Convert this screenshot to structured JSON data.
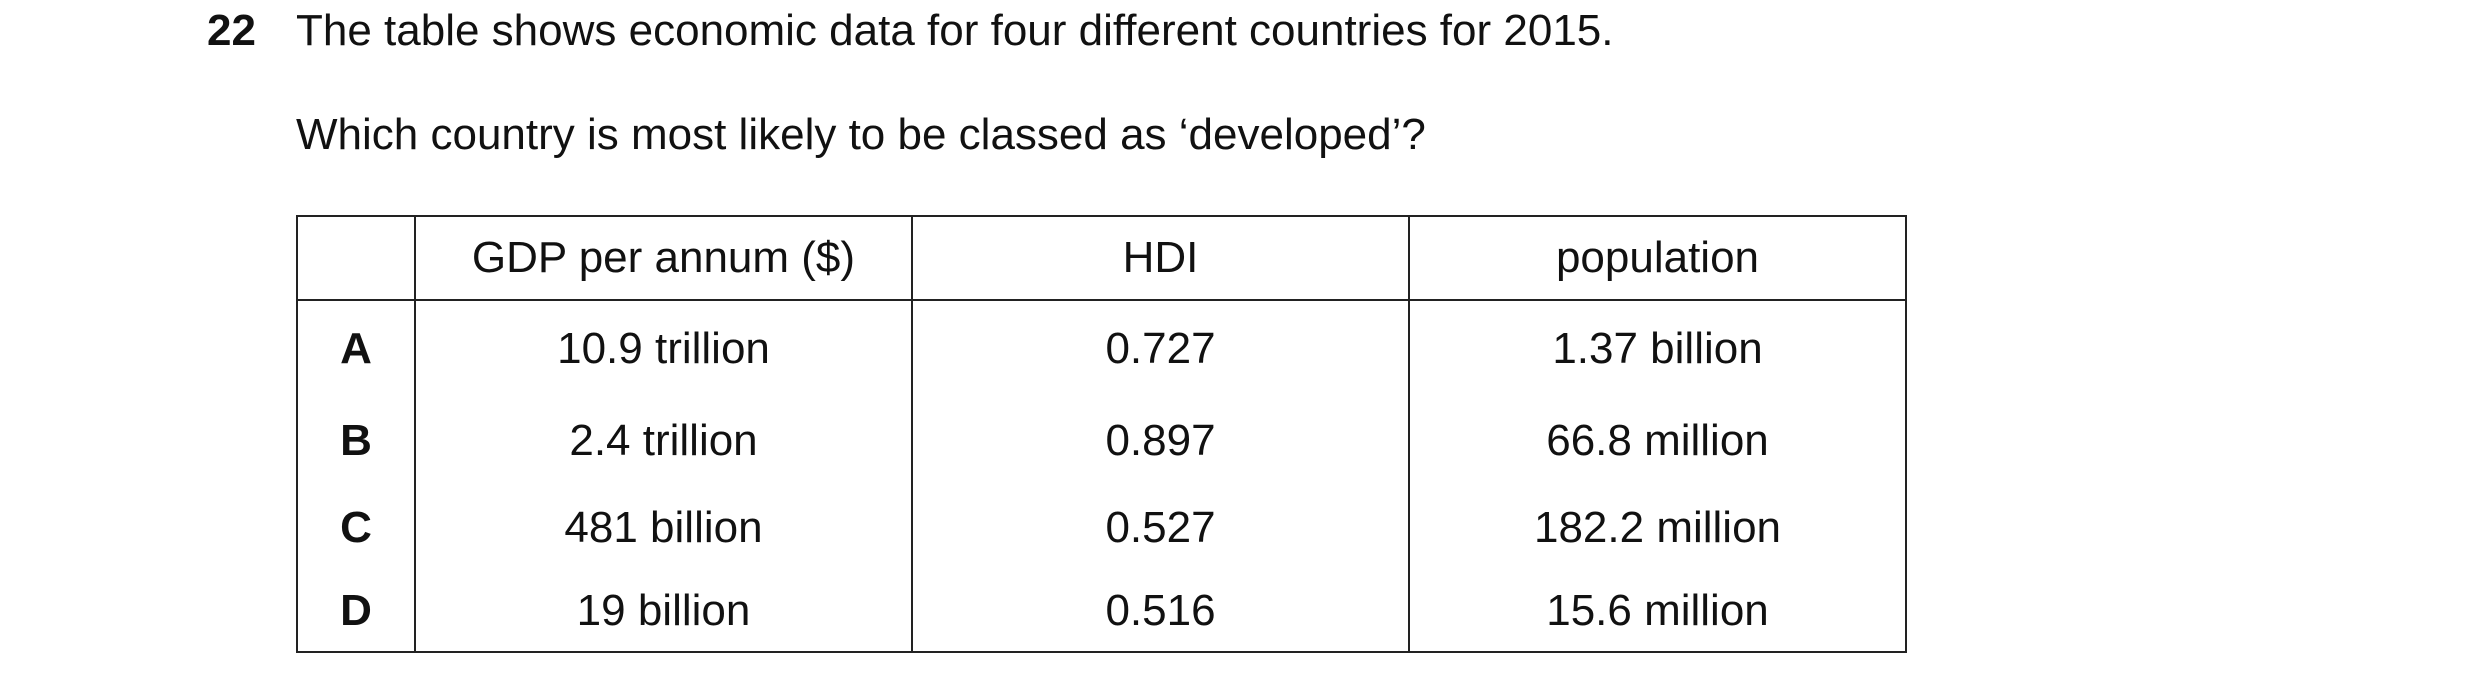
{
  "question": {
    "number": "22",
    "text": "The table shows economic data for four different countries for 2015.",
    "prompt": "Which country is most likely to be classed as ‘developed’?"
  },
  "table": {
    "header": [
      "GDP per annum ($)",
      "HDI",
      "population"
    ],
    "rows": [
      [
        "A",
        "10.9 trillion",
        "0.727",
        "1.37 billion"
      ],
      [
        "B",
        "2.4 trillion",
        "0.897",
        "66.8 million"
      ],
      [
        "C",
        "481 billion",
        "0.527",
        "182.2 million"
      ],
      [
        "D",
        "19 billion",
        "0.516",
        "15.6 million"
      ]
    ]
  }
}
